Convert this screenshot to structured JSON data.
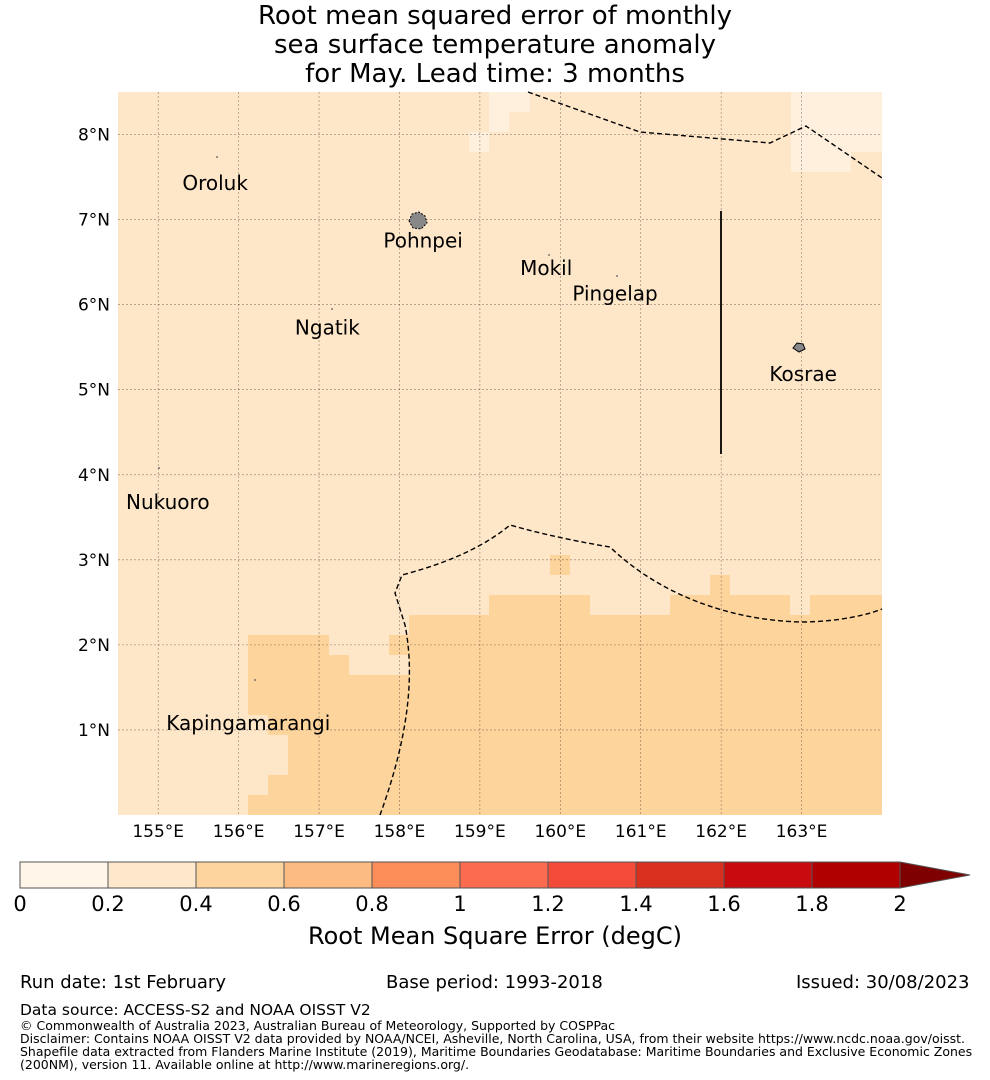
{
  "title": {
    "line1": "Root mean squared error of monthly",
    "line2": "sea surface temperature anomaly",
    "line3": "for May. Lead time: 3 months"
  },
  "map": {
    "lon_range": [
      154.5,
      164.0
    ],
    "lat_range": [
      0.0,
      8.5
    ],
    "lon_ticks": [
      {
        "value": 155,
        "label": "155°E"
      },
      {
        "value": 156,
        "label": "156°E"
      },
      {
        "value": 157,
        "label": "157°E"
      },
      {
        "value": 158,
        "label": "158°E"
      },
      {
        "value": 159,
        "label": "159°E"
      },
      {
        "value": 160,
        "label": "160°E"
      },
      {
        "value": 161,
        "label": "161°E"
      },
      {
        "value": 162,
        "label": "162°E"
      },
      {
        "value": 163,
        "label": "163°E"
      }
    ],
    "lat_ticks": [
      {
        "value": 1,
        "label": "1°N"
      },
      {
        "value": 2,
        "label": "2°N"
      },
      {
        "value": 3,
        "label": "3°N"
      },
      {
        "value": 4,
        "label": "4°N"
      },
      {
        "value": 5,
        "label": "5°N"
      },
      {
        "value": 6,
        "label": "6°N"
      },
      {
        "value": 7,
        "label": "7°N"
      },
      {
        "value": 8,
        "label": "8°N"
      }
    ],
    "places": [
      {
        "name": "Oroluk",
        "lon": 155.3,
        "lat": 7.35
      },
      {
        "name": "Pohnpei",
        "lon": 157.8,
        "lat": 6.67
      },
      {
        "name": "Mokil",
        "lon": 159.5,
        "lat": 6.35
      },
      {
        "name": "Pingelap",
        "lon": 160.15,
        "lat": 6.05
      },
      {
        "name": "Ngatik",
        "lon": 156.7,
        "lat": 5.65
      },
      {
        "name": "Kosrae",
        "lon": 162.6,
        "lat": 5.1
      },
      {
        "name": "Nukuoro",
        "lon": 154.6,
        "lat": 3.6
      },
      {
        "name": "Kapingamarangi",
        "lon": 155.1,
        "lat": 1.0
      }
    ],
    "region_colors": {
      "low": "#fff0de",
      "mid": "#fee6c8",
      "high": "#fdd49c"
    }
  },
  "colorbar": {
    "ticks": [
      "0",
      "0.2",
      "0.4",
      "0.6",
      "0.8",
      "1",
      "1.2",
      "1.4",
      "1.6",
      "1.8",
      "2"
    ],
    "colors": [
      "#fff5e8",
      "#fee8cc",
      "#fdd49e",
      "#fdbb84",
      "#fc8d59",
      "#fc6a4f",
      "#f24b3a",
      "#d7301f",
      "#c70b0f",
      "#b00000"
    ],
    "extend_color": "#7f0000",
    "label": "Root Mean Square Error (degC)"
  },
  "footer": {
    "run_date": "Run date: 1st February",
    "base_period": "Base period: 1993-2018",
    "issued": "Issued: 30/08/2023",
    "data_source": "Data source: ACCESS-S2 and NOAA OISST V2",
    "copyright": "© Commonwealth of Australia 2023, Australian Bureau of Meteorology, Supported by COSPPac",
    "disclaimer1": "Disclaimer: Contains NOAA OISST V2 data provided by NOAA/NCEI, Asheville, North Carolina, USA, from their website https://www.ncdc.noaa.gov/oisst.",
    "disclaimer2": "Shapefile data extracted from Flanders Marine Institute (2019), Maritime Boundaries Geodatabase: Maritime Boundaries and Exclusive Economic Zones",
    "disclaimer3": "(200NM), version 11. Available online at http://www.marineregions.org/."
  }
}
